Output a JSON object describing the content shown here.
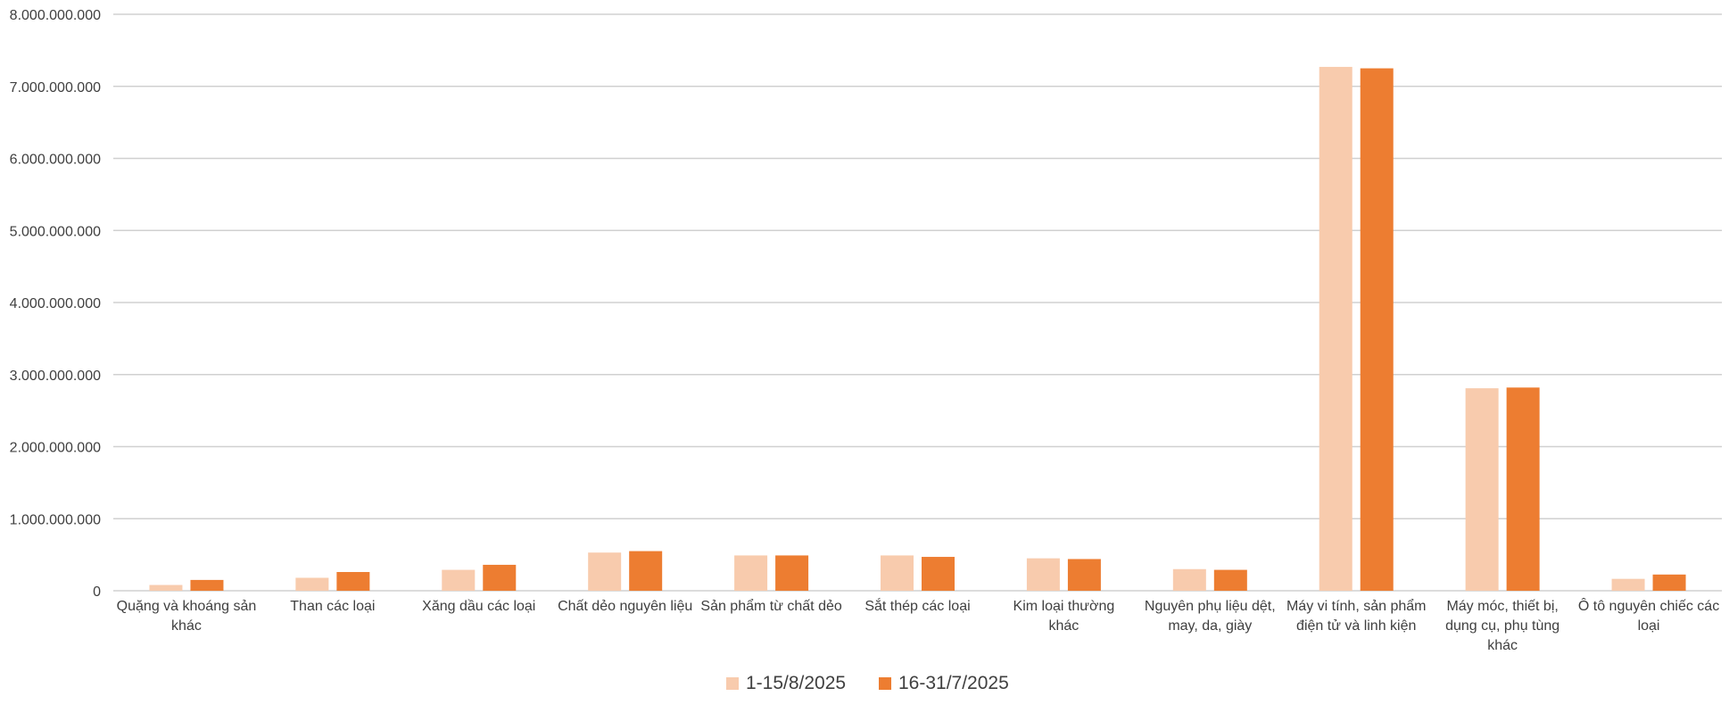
{
  "chart_data": {
    "type": "bar",
    "title": "",
    "xlabel": "",
    "ylabel": "",
    "ylim": [
      0,
      8000000000
    ],
    "yticks": [
      0,
      1000000000,
      2000000000,
      3000000000,
      4000000000,
      5000000000,
      6000000000,
      7000000000,
      8000000000
    ],
    "ytick_labels": [
      "0",
      "1.000.000.000",
      "2.000.000.000",
      "3.000.000.000",
      "4.000.000.000",
      "5.000.000.000",
      "6.000.000.000",
      "7.000.000.000",
      "8.000.000.000"
    ],
    "grid": true,
    "legend_position": "bottom",
    "categories": [
      [
        "Quặng và khoáng sản",
        "khác"
      ],
      [
        "Than các loại"
      ],
      [
        "Xăng dầu các loại"
      ],
      [
        "Chất dẻo nguyên liệu"
      ],
      [
        "Sản phẩm từ chất dẻo"
      ],
      [
        "Sắt thép các loại"
      ],
      [
        "Kim loại thường",
        "khác"
      ],
      [
        "Nguyên phụ liệu dệt,",
        "may, da, giày"
      ],
      [
        "Máy vi tính, sản phẩm",
        "điện tử và linh kiện"
      ],
      [
        "Máy móc, thiết bị,",
        "dụng cụ, phụ tùng",
        "khác"
      ],
      [
        "Ô tô nguyên chiếc các",
        "loại"
      ]
    ],
    "series": [
      {
        "name": "1-15/8/2025",
        "color": "#f8cbad",
        "values": [
          80000000,
          180000000,
          290000000,
          530000000,
          490000000,
          490000000,
          450000000,
          300000000,
          7270000000,
          2810000000,
          165000000
        ]
      },
      {
        "name": "16-31/7/2025",
        "color": "#ed7d31",
        "values": [
          150000000,
          260000000,
          360000000,
          550000000,
          490000000,
          470000000,
          440000000,
          290000000,
          7250000000,
          2820000000,
          225000000
        ]
      }
    ]
  }
}
